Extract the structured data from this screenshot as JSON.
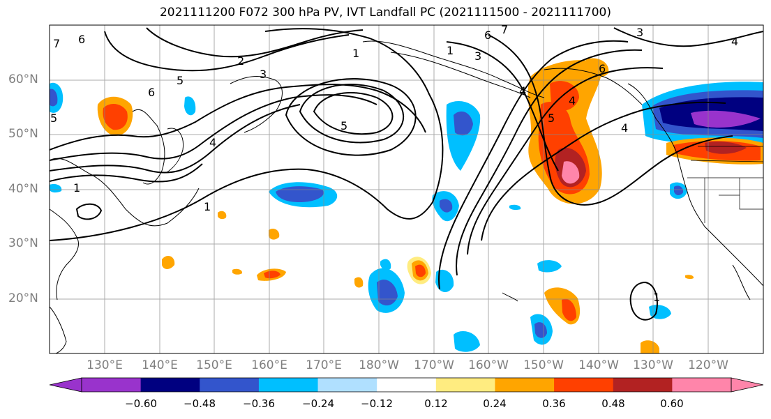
{
  "title": "2021111200 F072 300 hPa PV, IVT Landfall PC (2021111500 - 2021111700)",
  "lat_labels": [
    "60°N",
    "50°N",
    "40°N",
    "30°N",
    "20°N"
  ],
  "lon_labels": [
    "130°E",
    "140°E",
    "150°E",
    "160°E",
    "170°E",
    "180°W",
    "170°W",
    "160°W",
    "150°W",
    "140°W",
    "130°W",
    "120°W"
  ],
  "colorbar": {
    "ticks": [
      "−0.60",
      "−0.48",
      "−0.36",
      "−0.24",
      "−0.12",
      "0.12",
      "0.24",
      "0.36",
      "0.48",
      "0.60"
    ],
    "colors": [
      "#9933cc",
      "#000080",
      "#3355cc",
      "#00bfff",
      "#b0e0ff",
      "#ffffff",
      "#ffec80",
      "#ffa500",
      "#ff4000",
      "#b22222",
      "#ff85aa"
    ]
  },
  "contour_labels": [
    "6",
    "7",
    "2",
    "1",
    "3",
    "5",
    "6",
    "5",
    "4",
    "1",
    "5",
    "1",
    "6",
    "7",
    "3",
    "4",
    "6",
    "4",
    "4",
    "5",
    "1",
    "1",
    "3",
    "4"
  ]
}
